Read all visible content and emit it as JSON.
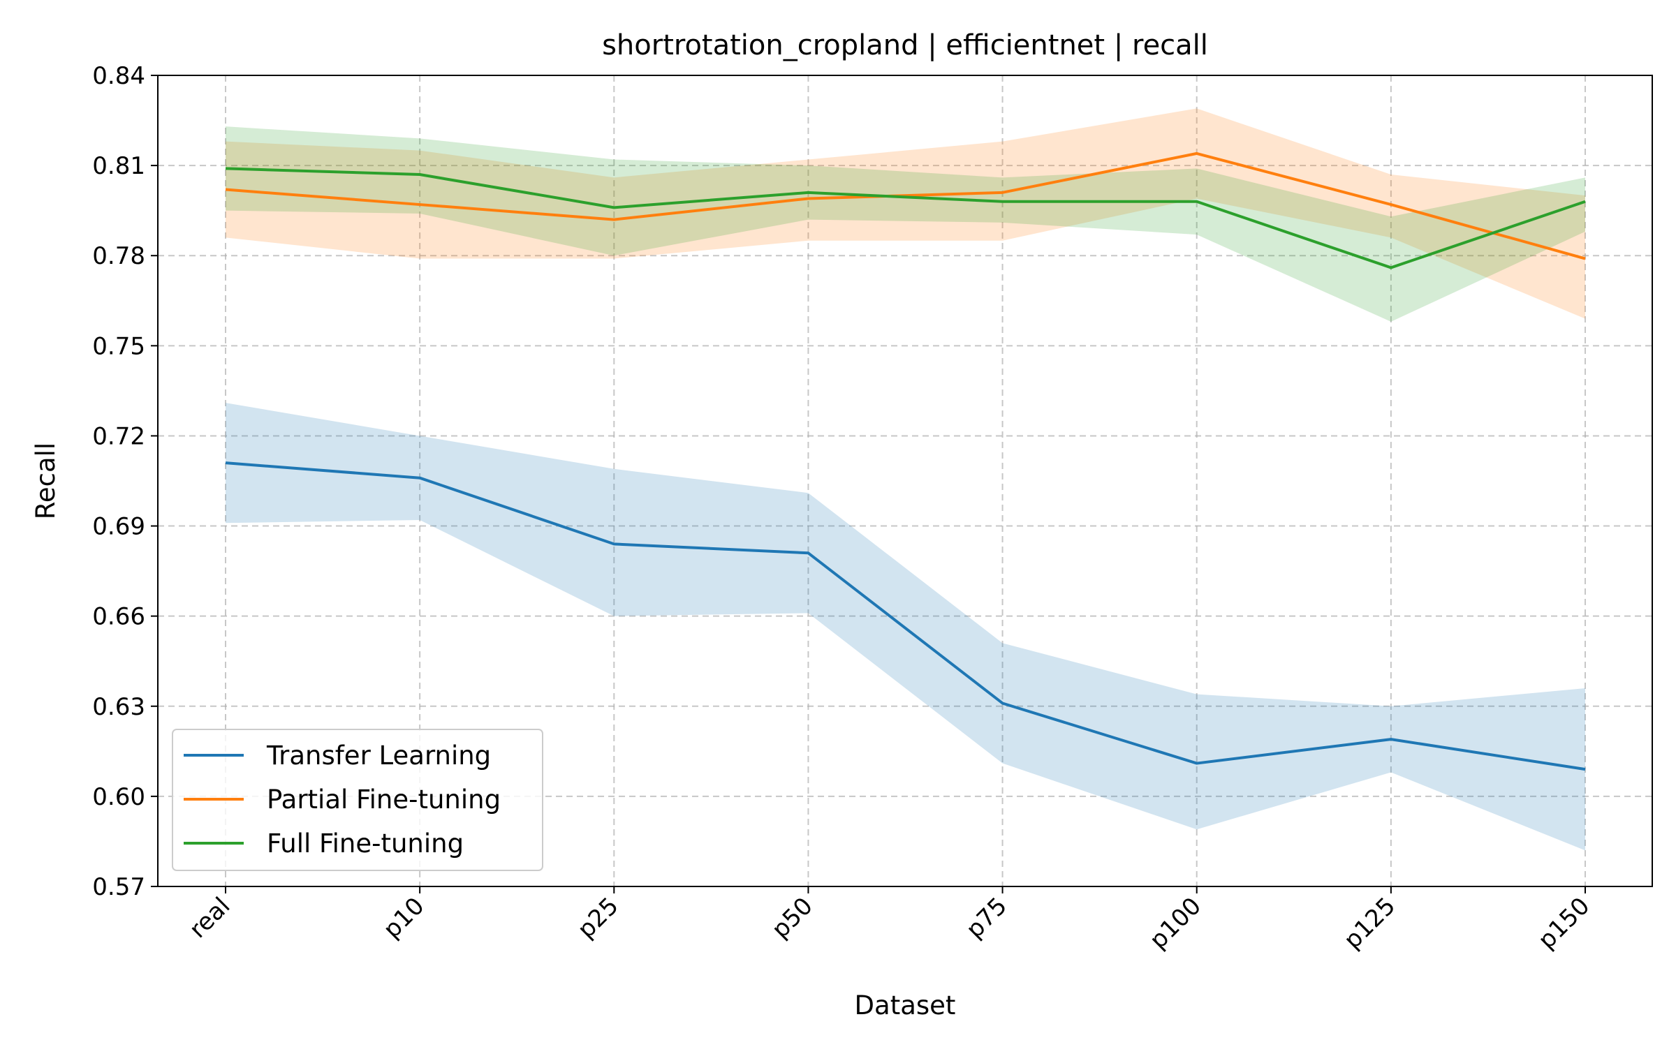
{
  "chart_data": {
    "type": "line",
    "title": "shortrotation_cropland | efficientnet | recall",
    "xlabel": "Dataset",
    "ylabel": "Recall",
    "categories": [
      "real",
      "p10",
      "p25",
      "p50",
      "p75",
      "p100",
      "p125",
      "p150"
    ],
    "ylim": [
      0.57,
      0.84
    ],
    "yticks": [
      "0.57",
      "0.60",
      "0.63",
      "0.66",
      "0.69",
      "0.72",
      "0.75",
      "0.78",
      "0.81",
      "0.84"
    ],
    "grid": true,
    "legend_position": "lower-left",
    "series": [
      {
        "name": "Transfer Learning",
        "color": "#1f77b4",
        "values": [
          0.711,
          0.706,
          0.684,
          0.681,
          0.631,
          0.611,
          0.619,
          0.609
        ],
        "lower": [
          0.691,
          0.692,
          0.66,
          0.661,
          0.611,
          0.589,
          0.608,
          0.582
        ],
        "upper": [
          0.731,
          0.72,
          0.709,
          0.701,
          0.651,
          0.634,
          0.63,
          0.636
        ]
      },
      {
        "name": "Partial Fine-tuning",
        "color": "#ff7f0e",
        "values": [
          0.802,
          0.797,
          0.792,
          0.799,
          0.801,
          0.814,
          0.797,
          0.779
        ],
        "lower": [
          0.786,
          0.779,
          0.779,
          0.785,
          0.785,
          0.799,
          0.786,
          0.759
        ],
        "upper": [
          0.818,
          0.815,
          0.806,
          0.812,
          0.818,
          0.829,
          0.807,
          0.8
        ]
      },
      {
        "name": "Full Fine-tuning",
        "color": "#2ca02c",
        "values": [
          0.809,
          0.807,
          0.796,
          0.801,
          0.798,
          0.798,
          0.776,
          0.798
        ],
        "lower": [
          0.795,
          0.794,
          0.78,
          0.792,
          0.791,
          0.787,
          0.758,
          0.788
        ],
        "upper": [
          0.823,
          0.819,
          0.812,
          0.81,
          0.806,
          0.809,
          0.793,
          0.806
        ]
      }
    ]
  }
}
